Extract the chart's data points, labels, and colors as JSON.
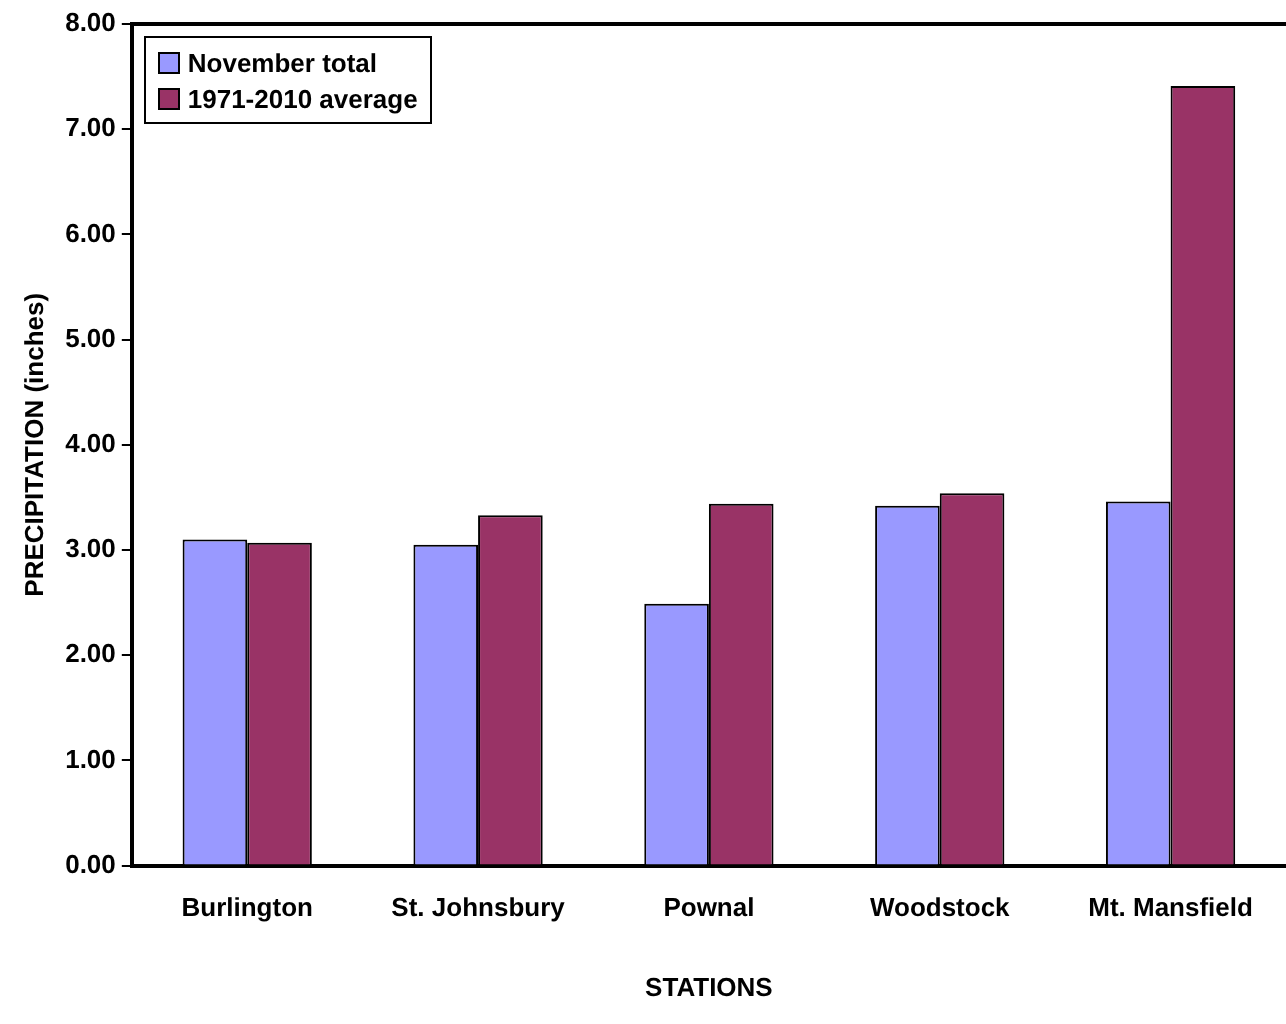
{
  "chart_data": {
    "type": "bar",
    "xlabel": "STATIONS",
    "ylabel": "PRECIPITATION (inches)",
    "categories": [
      "Burlington",
      "St. Johnsbury",
      "Pownal",
      "Woodstock",
      "Mt. Mansfield"
    ],
    "series": [
      {
        "name": "November total",
        "color": "#9999ff",
        "values": [
          3.1,
          3.05,
          2.49,
          3.42,
          3.46
        ]
      },
      {
        "name": "1971-2010 average",
        "color": "#993366",
        "values": [
          3.07,
          3.33,
          3.44,
          3.54,
          7.41
        ]
      }
    ],
    "ylim": [
      0,
      8
    ],
    "yticks": [
      {
        "value": 0,
        "label": "0.00"
      },
      {
        "value": 1,
        "label": "1.00"
      },
      {
        "value": 2,
        "label": "2.00"
      },
      {
        "value": 3,
        "label": "3.00"
      },
      {
        "value": 4,
        "label": "4.00"
      },
      {
        "value": 5,
        "label": "5.00"
      },
      {
        "value": 6,
        "label": "6.00"
      },
      {
        "value": 7,
        "label": "7.00"
      },
      {
        "value": 8,
        "label": "8.00"
      }
    ],
    "grid": false,
    "legend": "top left"
  }
}
